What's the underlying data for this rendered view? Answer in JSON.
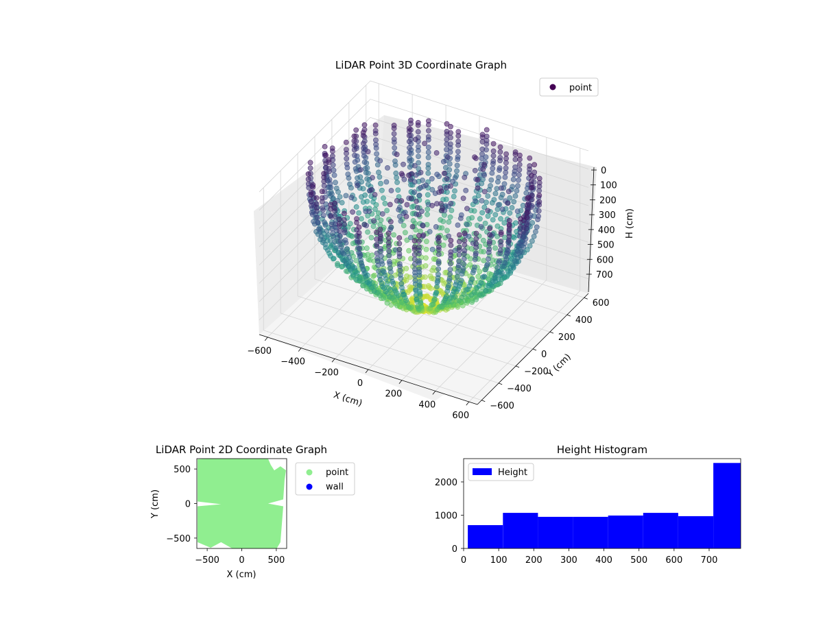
{
  "chart_data": [
    {
      "type": "scatter",
      "title": "LiDAR Point 3D Coordinate Graph",
      "xlabel": "X (cm)",
      "ylabel": "Y (cm)",
      "zlabel": "H (cm)",
      "xlim": [
        -650,
        650
      ],
      "ylim": [
        -650,
        650
      ],
      "zlim": [
        780,
        0
      ],
      "xticks": [
        "−600",
        "−400",
        "−200",
        "0",
        "200",
        "400",
        "600"
      ],
      "yticks": [
        "−600",
        "−400",
        "−200",
        "0",
        "200",
        "400",
        "600"
      ],
      "zticks": [
        "0",
        "100",
        "200",
        "300",
        "400",
        "500",
        "600",
        "700"
      ],
      "colormap": "viridis",
      "colormap_stops": [
        "#440154",
        "#3b528b",
        "#21918c",
        "#5ec962",
        "#fde725"
      ],
      "legend": {
        "label": "point",
        "placement": "upper right",
        "color": "#440154"
      }
    },
    {
      "type": "scatter",
      "title": "LiDAR Point 2D Coordinate Graph",
      "xlabel": "X (cm)",
      "ylabel": "Y (cm)",
      "xlim": [
        -650,
        650
      ],
      "ylim": [
        -650,
        650
      ],
      "xticks": [
        "−500",
        "0",
        "500"
      ],
      "yticks": [
        "500",
        "0",
        "−500"
      ],
      "series": [
        {
          "name": "point",
          "color": "#90ee90"
        },
        {
          "name": "wall",
          "color": "#0000ff"
        }
      ],
      "legend_placement": "outside right"
    },
    {
      "type": "bar",
      "title": "Height Histogram",
      "legend": "Height",
      "legend_placement": "upper left",
      "color": "#0000ff",
      "xlim": [
        0,
        790
      ],
      "ylim": [
        0,
        2700
      ],
      "xticks": [
        "0",
        "100",
        "200",
        "300",
        "400",
        "500",
        "600",
        "700"
      ],
      "yticks": [
        "0",
        "1000",
        "2000"
      ],
      "bins": [
        {
          "x0": 12,
          "x1": 112,
          "value": 700
        },
        {
          "x0": 112,
          "x1": 212,
          "value": 1070
        },
        {
          "x0": 212,
          "x1": 312,
          "value": 950
        },
        {
          "x0": 312,
          "x1": 412,
          "value": 950
        },
        {
          "x0": 412,
          "x1": 512,
          "value": 990
        },
        {
          "x0": 512,
          "x1": 612,
          "value": 1070
        },
        {
          "x0": 612,
          "x1": 712,
          "value": 970
        },
        {
          "x0": 712,
          "x1": 790,
          "value": 2570
        }
      ]
    }
  ]
}
